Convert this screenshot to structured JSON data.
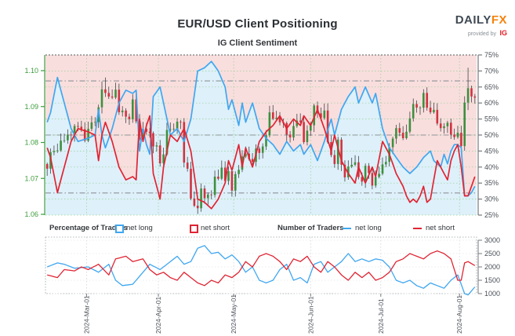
{
  "header": {
    "title": "EUR/USD Client Positioning",
    "subtitle": "IG Client Sentiment",
    "logo": {
      "daily": "DAILY",
      "fx": "FX",
      "provided": "provided by",
      "ig": "IG"
    }
  },
  "legend": {
    "pct_group": "Percentage of Traders",
    "num_group": "Number of Traders",
    "net_long": "net long",
    "net_short": "net short"
  },
  "colors": {
    "pink_fill": "#f9dede",
    "blue_fill": "#def0fa",
    "net_long_line": "#3fa7f0",
    "net_short_line": "#e02433",
    "candle_up": "#3f8f3f",
    "candle_down": "#cf3340",
    "wick": "#444444",
    "grid_green": "#93cf93",
    "axis_green": "#3c9c3c",
    "axis_gray": "#75797d",
    "dashdot_gray": "#8f9398",
    "label_gray": "#4a5057"
  },
  "chart_data": {
    "type": "candlestick+line",
    "title": "EUR/USD Client Positioning",
    "subtitle": "IG Client Sentiment",
    "x_labels": [
      "2024-Mar-01",
      "2024-Apr-01",
      "2024-May-01",
      "2024-Jun-01",
      "2024-Jul-01",
      "2024-Aug-01"
    ],
    "month_gridline_days": [
      12,
      33,
      55,
      77.5,
      98,
      121
    ],
    "price_axis": {
      "ticks": [
        1.06,
        1.07,
        1.08,
        1.09,
        1.1
      ],
      "decimals": 2
    },
    "pct_axis": {
      "ticks": [
        25,
        30,
        35,
        40,
        45,
        50,
        55,
        60,
        65,
        70,
        75
      ],
      "suffix": "%"
    },
    "traders_axis": {
      "ticks": [
        1000,
        1500,
        2000,
        2500,
        3000
      ]
    },
    "reference_lines_pct": [
      66.9,
      50,
      31.9
    ],
    "days": 126,
    "closes": [
      1.0727,
      1.0773,
      1.0776,
      1.0778,
      1.0805,
      1.0806,
      1.0822,
      1.0821,
      1.0846,
      1.0844,
      1.0837,
      1.0805,
      1.0838,
      1.0856,
      1.0857,
      1.0898,
      1.0948,
      1.0938,
      1.0928,
      1.0925,
      1.0947,
      1.0884,
      1.0889,
      1.0872,
      1.0865,
      1.092,
      1.0859,
      1.0808,
      1.0838,
      1.083,
      1.0826,
      1.0789,
      1.0792,
      1.0742,
      1.0767,
      1.0835,
      1.0837,
      1.0838,
      1.0858,
      1.0857,
      1.0744,
      1.0727,
      1.0644,
      1.0624,
      1.0617,
      1.0672,
      1.0645,
      1.0655,
      1.0654,
      1.0705,
      1.0699,
      1.073,
      1.0693,
      1.072,
      1.0666,
      1.0712,
      1.0724,
      1.0761,
      1.0769,
      1.0754,
      1.0746,
      1.0783,
      1.0771,
      1.0789,
      1.082,
      1.0884,
      1.0866,
      1.0869,
      1.0856,
      1.0854,
      1.0822,
      1.0814,
      1.0846,
      1.0861,
      1.0857,
      1.0801,
      1.0833,
      1.0848,
      1.0903,
      1.0881,
      1.0868,
      1.0889,
      1.0801,
      1.0765,
      1.074,
      1.0808,
      1.0738,
      1.0703,
      1.0733,
      1.0738,
      1.0745,
      1.0704,
      1.0691,
      1.0735,
      1.0715,
      1.068,
      1.0704,
      1.0713,
      1.0739,
      1.0746,
      1.0787,
      1.0811,
      1.084,
      1.0827,
      1.0812,
      1.083,
      1.0867,
      1.0907,
      1.0897,
      1.0897,
      1.0938,
      1.0897,
      1.0884,
      1.0891,
      1.0853,
      1.084,
      1.0845,
      1.0855,
      1.0822,
      1.0815,
      1.0827,
      1.079,
      1.0911,
      1.0951,
      1.0928,
      1.0925
    ],
    "first_open": 1.074,
    "wick_overrides": {
      "16": {
        "hi": 1.097
      },
      "17": {
        "hi": 1.0981
      },
      "44": {
        "lo": 1.0601
      },
      "122": {
        "lo": 1.0777
      },
      "123": {
        "hi": 1.1008,
        "lo": 1.089
      }
    },
    "net_long_pct_keyframes": [
      [
        0,
        54
      ],
      [
        1,
        57
      ],
      [
        3,
        68
      ],
      [
        5,
        60
      ],
      [
        7,
        52
      ],
      [
        9,
        48
      ],
      [
        12,
        49
      ],
      [
        14,
        50
      ],
      [
        15,
        58
      ],
      [
        16,
        50
      ],
      [
        17,
        46
      ],
      [
        19,
        52
      ],
      [
        21,
        60
      ],
      [
        23,
        64
      ],
      [
        25,
        63
      ],
      [
        26,
        64
      ],
      [
        27,
        45
      ],
      [
        28,
        52
      ],
      [
        29,
        47
      ],
      [
        30,
        44
      ],
      [
        31,
        62
      ],
      [
        33,
        65
      ],
      [
        34,
        60
      ],
      [
        35,
        55
      ],
      [
        36,
        50
      ],
      [
        38,
        52
      ],
      [
        40,
        48
      ],
      [
        42,
        55
      ],
      [
        44,
        70
      ],
      [
        46,
        71
      ],
      [
        48,
        73
      ],
      [
        50,
        70
      ],
      [
        52,
        65
      ],
      [
        53,
        58
      ],
      [
        54,
        61
      ],
      [
        56,
        53
      ],
      [
        57,
        60
      ],
      [
        58,
        54
      ],
      [
        60,
        60
      ],
      [
        62,
        52
      ],
      [
        64,
        49
      ],
      [
        66,
        47
      ],
      [
        68,
        44
      ],
      [
        70,
        48
      ],
      [
        72,
        45
      ],
      [
        74,
        47
      ],
      [
        75,
        44
      ],
      [
        77,
        47
      ],
      [
        79,
        42
      ],
      [
        81,
        48
      ],
      [
        83,
        55
      ],
      [
        84,
        50
      ],
      [
        86,
        58
      ],
      [
        88,
        62
      ],
      [
        90,
        65
      ],
      [
        91,
        60
      ],
      [
        93,
        65
      ],
      [
        95,
        60
      ],
      [
        96,
        63
      ],
      [
        98,
        52
      ],
      [
        100,
        46
      ],
      [
        102,
        43
      ],
      [
        104,
        40
      ],
      [
        106,
        38
      ],
      [
        108,
        40
      ],
      [
        110,
        43
      ],
      [
        112,
        45
      ],
      [
        113,
        42
      ],
      [
        115,
        40
      ],
      [
        116,
        44
      ],
      [
        117,
        41
      ],
      [
        118,
        45
      ],
      [
        119,
        47
      ],
      [
        120,
        47
      ],
      [
        121,
        46
      ],
      [
        122,
        31
      ],
      [
        123,
        31
      ],
      [
        124,
        32
      ],
      [
        125,
        34
      ]
    ],
    "net_short_pct_keyframes": [
      [
        0,
        46
      ],
      [
        1,
        43
      ],
      [
        3,
        32
      ],
      [
        5,
        40
      ],
      [
        7,
        48
      ],
      [
        9,
        52
      ],
      [
        12,
        51
      ],
      [
        14,
        50
      ],
      [
        15,
        42
      ],
      [
        16,
        50
      ],
      [
        17,
        54
      ],
      [
        19,
        48
      ],
      [
        21,
        40
      ],
      [
        23,
        36
      ],
      [
        25,
        37
      ],
      [
        26,
        36
      ],
      [
        27,
        55
      ],
      [
        28,
        48
      ],
      [
        29,
        53
      ],
      [
        30,
        56
      ],
      [
        31,
        38
      ],
      [
        33,
        30
      ],
      [
        34,
        40
      ],
      [
        35,
        45
      ],
      [
        36,
        50
      ],
      [
        38,
        48
      ],
      [
        40,
        52
      ],
      [
        42,
        45
      ],
      [
        44,
        30
      ],
      [
        46,
        29
      ],
      [
        48,
        27
      ],
      [
        50,
        30
      ],
      [
        52,
        35
      ],
      [
        53,
        42
      ],
      [
        54,
        39
      ],
      [
        56,
        47
      ],
      [
        57,
        40
      ],
      [
        58,
        46
      ],
      [
        60,
        40
      ],
      [
        62,
        48
      ],
      [
        64,
        51
      ],
      [
        66,
        53
      ],
      [
        68,
        56
      ],
      [
        70,
        52
      ],
      [
        72,
        55
      ],
      [
        74,
        53
      ],
      [
        75,
        56
      ],
      [
        77,
        53
      ],
      [
        79,
        58
      ],
      [
        81,
        52
      ],
      [
        83,
        45
      ],
      [
        84,
        50
      ],
      [
        86,
        42
      ],
      [
        88,
        38
      ],
      [
        90,
        35
      ],
      [
        91,
        40
      ],
      [
        93,
        35
      ],
      [
        95,
        40
      ],
      [
        96,
        37
      ],
      [
        98,
        48
      ],
      [
        100,
        44
      ],
      [
        102,
        38
      ],
      [
        104,
        34
      ],
      [
        105,
        31
      ],
      [
        106,
        29
      ],
      [
        107,
        30
      ],
      [
        108,
        29
      ],
      [
        109,
        31
      ],
      [
        110,
        34
      ],
      [
        111,
        29
      ],
      [
        112,
        30
      ],
      [
        113,
        36
      ],
      [
        114,
        42
      ],
      [
        115,
        40
      ],
      [
        116,
        38
      ],
      [
        117,
        36
      ],
      [
        118,
        42
      ],
      [
        119,
        45
      ],
      [
        120,
        47
      ],
      [
        121,
        40
      ],
      [
        122,
        31
      ],
      [
        123,
        31
      ],
      [
        124,
        34
      ],
      [
        125,
        37
      ]
    ],
    "fill_boundary_exception": {
      "line": "net_short",
      "from": 15,
      "to": 28
    },
    "traders_long_keyframes": [
      [
        0,
        2000
      ],
      [
        3,
        2150
      ],
      [
        5,
        2100
      ],
      [
        8,
        1950
      ],
      [
        12,
        2000
      ],
      [
        15,
        1800
      ],
      [
        18,
        2100
      ],
      [
        20,
        1500
      ],
      [
        22,
        1300
      ],
      [
        25,
        1350
      ],
      [
        28,
        1800
      ],
      [
        30,
        2100
      ],
      [
        33,
        1900
      ],
      [
        36,
        2200
      ],
      [
        38,
        2400
      ],
      [
        40,
        2100
      ],
      [
        42,
        2200
      ],
      [
        44,
        2700
      ],
      [
        46,
        2800
      ],
      [
        48,
        2500
      ],
      [
        50,
        2550
      ],
      [
        52,
        2300
      ],
      [
        54,
        2450
      ],
      [
        56,
        2200
      ],
      [
        58,
        1800
      ],
      [
        60,
        2000
      ],
      [
        62,
        1500
      ],
      [
        64,
        1400
      ],
      [
        66,
        1500
      ],
      [
        68,
        1900
      ],
      [
        70,
        2100
      ],
      [
        72,
        1500
      ],
      [
        74,
        1600
      ],
      [
        76,
        1400
      ],
      [
        78,
        2100
      ],
      [
        80,
        2200
      ],
      [
        82,
        1800
      ],
      [
        84,
        2000
      ],
      [
        86,
        2200
      ],
      [
        88,
        2500
      ],
      [
        90,
        2200
      ],
      [
        92,
        2300
      ],
      [
        94,
        2200
      ],
      [
        96,
        2300
      ],
      [
        98,
        2250
      ],
      [
        100,
        2000
      ],
      [
        102,
        1500
      ],
      [
        104,
        1400
      ],
      [
        106,
        1500
      ],
      [
        108,
        1300
      ],
      [
        110,
        1200
      ],
      [
        112,
        1400
      ],
      [
        114,
        1300
      ],
      [
        116,
        1200
      ],
      [
        118,
        1500
      ],
      [
        120,
        1700
      ],
      [
        122,
        1000
      ],
      [
        123,
        950
      ],
      [
        125,
        1250
      ]
    ],
    "traders_short_keyframes": [
      [
        0,
        1700
      ],
      [
        3,
        1600
      ],
      [
        5,
        1900
      ],
      [
        8,
        1850
      ],
      [
        10,
        2000
      ],
      [
        12,
        1900
      ],
      [
        15,
        2100
      ],
      [
        18,
        1700
      ],
      [
        20,
        2300
      ],
      [
        23,
        2400
      ],
      [
        25,
        2200
      ],
      [
        28,
        2300
      ],
      [
        30,
        1900
      ],
      [
        32,
        1700
      ],
      [
        34,
        1800
      ],
      [
        36,
        1600
      ],
      [
        38,
        1500
      ],
      [
        40,
        1800
      ],
      [
        42,
        1600
      ],
      [
        44,
        1400
      ],
      [
        46,
        1300
      ],
      [
        48,
        1500
      ],
      [
        50,
        1400
      ],
      [
        52,
        1700
      ],
      [
        54,
        1600
      ],
      [
        56,
        1800
      ],
      [
        58,
        2200
      ],
      [
        60,
        2000
      ],
      [
        62,
        2400
      ],
      [
        64,
        2500
      ],
      [
        66,
        2400
      ],
      [
        68,
        2200
      ],
      [
        70,
        1900
      ],
      [
        72,
        2300
      ],
      [
        74,
        2200
      ],
      [
        76,
        2400
      ],
      [
        78,
        2000
      ],
      [
        80,
        1800
      ],
      [
        82,
        2200
      ],
      [
        84,
        2000
      ],
      [
        86,
        1700
      ],
      [
        88,
        1500
      ],
      [
        90,
        1800
      ],
      [
        92,
        1600
      ],
      [
        94,
        1800
      ],
      [
        96,
        1500
      ],
      [
        98,
        1600
      ],
      [
        100,
        1800
      ],
      [
        102,
        2200
      ],
      [
        104,
        2300
      ],
      [
        106,
        2500
      ],
      [
        108,
        2400
      ],
      [
        110,
        2300
      ],
      [
        112,
        2500
      ],
      [
        114,
        2600
      ],
      [
        116,
        2500
      ],
      [
        118,
        2300
      ],
      [
        119,
        1900
      ],
      [
        120,
        1500
      ],
      [
        121,
        1500
      ],
      [
        122,
        2150
      ],
      [
        123,
        2200
      ],
      [
        125,
        2050
      ]
    ]
  }
}
